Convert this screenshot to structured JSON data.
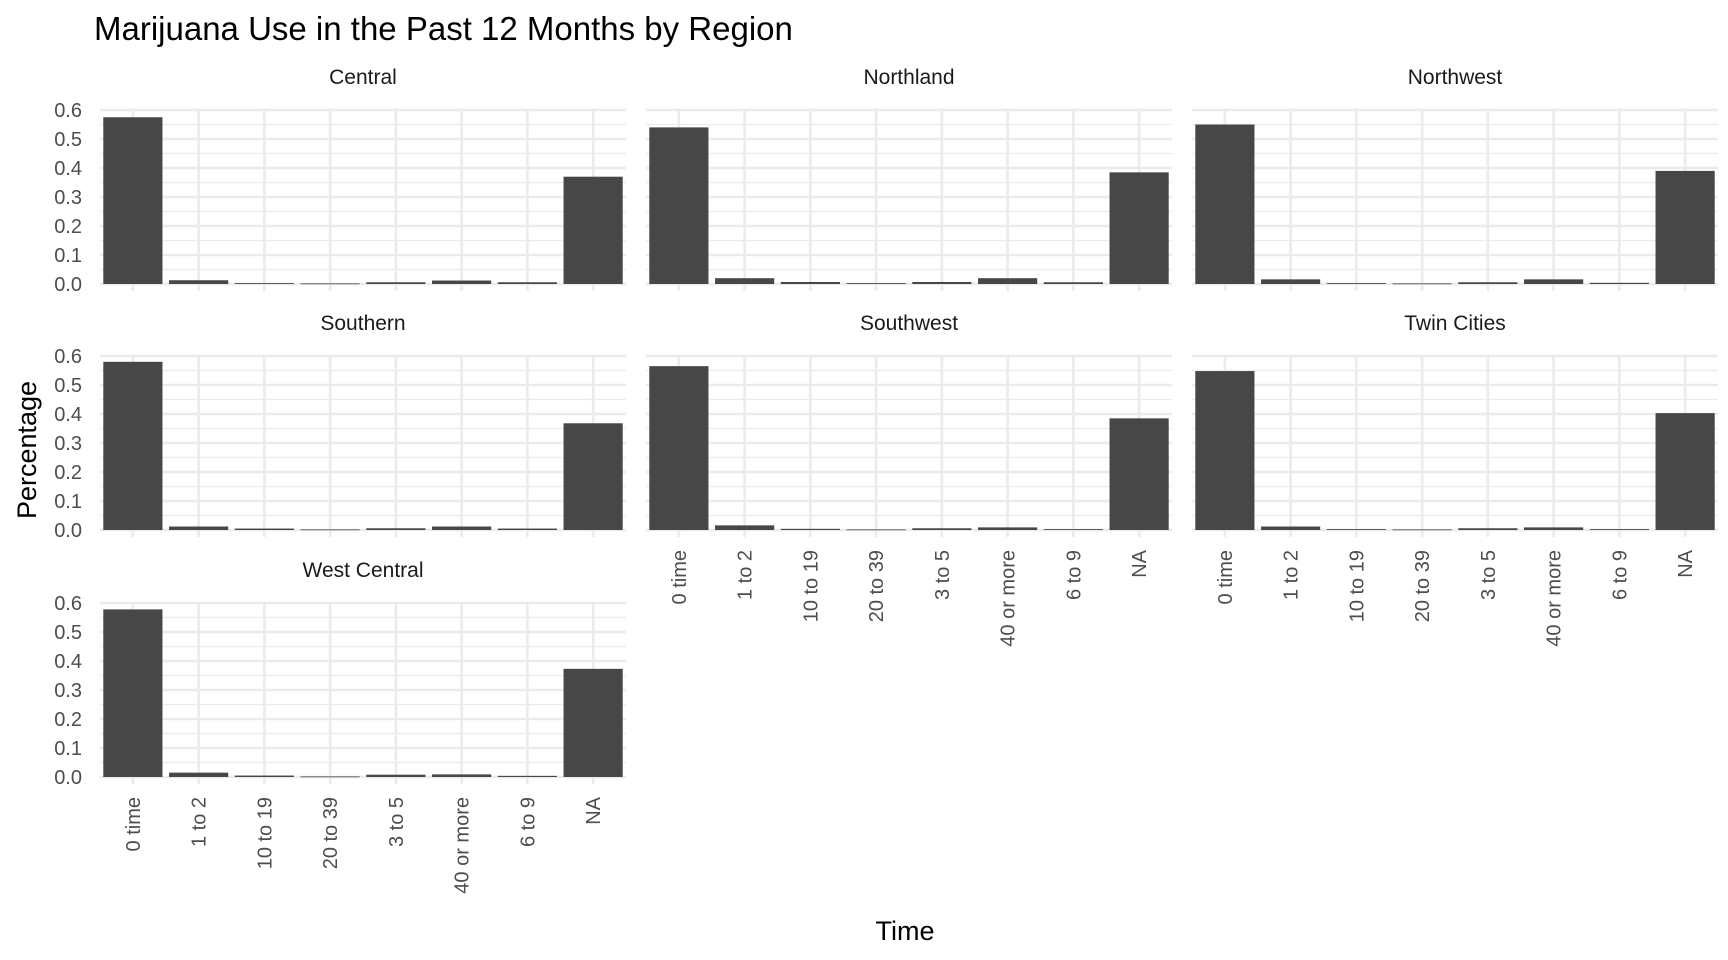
{
  "chart_data": {
    "type": "bar",
    "title": "Marijuana Use in the Past 12 Months by Region",
    "xlabel": "Time",
    "ylabel": "Percentage",
    "ylim": [
      0,
      0.6
    ],
    "yticks": [
      0,
      0.1,
      0.2,
      0.3,
      0.4,
      0.5,
      0.6
    ],
    "ytick_labels": [
      "0.0",
      "0.1",
      "0.2",
      "0.3",
      "0.4",
      "0.5",
      "0.6"
    ],
    "categories": [
      "0 time",
      "1 to 2",
      "10 to 19",
      "20 to 39",
      "3 to 5",
      "40 or more",
      "6 to 9",
      "NA"
    ],
    "facets": [
      {
        "name": "Central",
        "values": [
          0.575,
          0.013,
          0.003,
          0.002,
          0.006,
          0.012,
          0.006,
          0.37
        ]
      },
      {
        "name": "Northland",
        "values": [
          0.54,
          0.02,
          0.007,
          0.003,
          0.007,
          0.02,
          0.006,
          0.385
        ]
      },
      {
        "name": "Northwest",
        "values": [
          0.55,
          0.016,
          0.003,
          0.002,
          0.006,
          0.016,
          0.004,
          0.39
        ]
      },
      {
        "name": "Southern",
        "values": [
          0.58,
          0.012,
          0.005,
          0.002,
          0.006,
          0.012,
          0.005,
          0.368
        ]
      },
      {
        "name": "Southwest",
        "values": [
          0.565,
          0.016,
          0.004,
          0.002,
          0.006,
          0.009,
          0.003,
          0.385
        ]
      },
      {
        "name": "Twin Cities",
        "values": [
          0.548,
          0.012,
          0.003,
          0.002,
          0.006,
          0.009,
          0.003,
          0.403
        ]
      },
      {
        "name": "West Central",
        "values": [
          0.578,
          0.015,
          0.005,
          0.002,
          0.008,
          0.009,
          0.004,
          0.373
        ]
      }
    ]
  }
}
